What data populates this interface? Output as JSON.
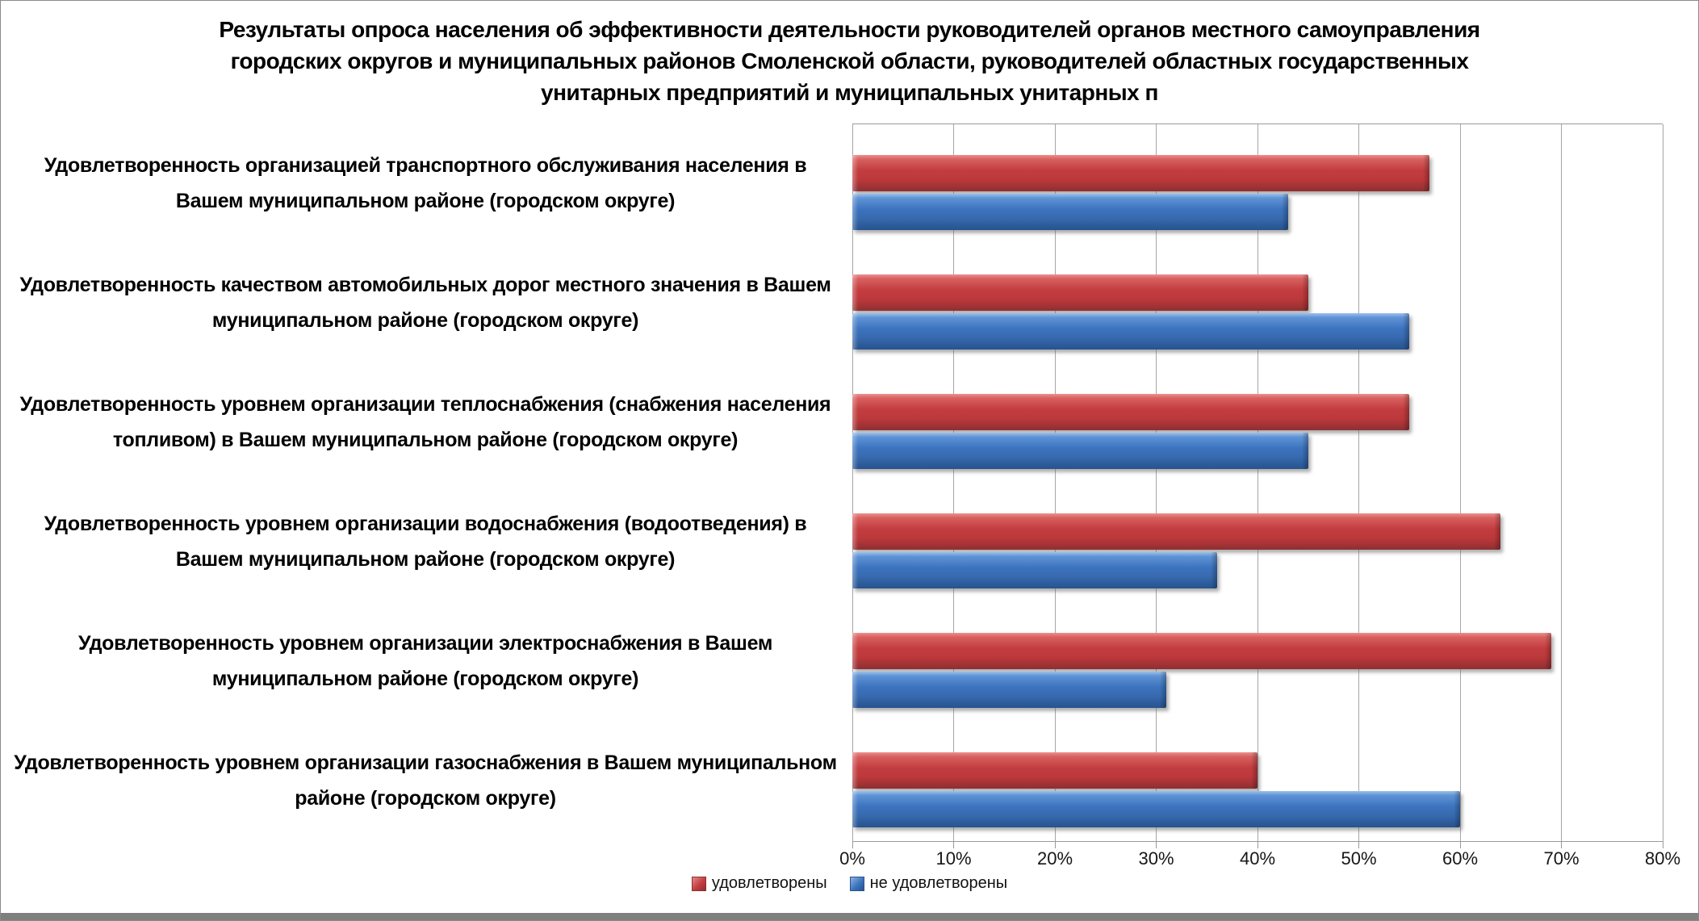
{
  "title": {
    "lines": [
      "Результаты опроса населения об эффективности деятельности руководителей органов местного самоуправления",
      "городских округов и муниципальных районов Смоленской области, руководителей областных государственных",
      "унитарных предприятий и муниципальных унитарных п"
    ]
  },
  "chart_data": {
    "type": "bar",
    "orientation": "horizontal",
    "title": "Результаты опроса населения об эффективности деятельности руководителей органов местного самоуправления городских округов и муниципальных районов Смоленской области, руководителей областных государственных унитарных предприятий и муниципальных унитарных п",
    "categories": [
      "Удовлетворенность организацией транспортного обслуживания населения в Вашем муниципальном районе (городском округе)",
      "Удовлетворенность качеством автомобильных дорог местного значения в Вашем муниципальном районе (городском округе)",
      "Удовлетворенность уровнем организации теплоснабжения (снабжения населения топливом) в Вашем муниципальном районе (городском округе)",
      "Удовлетворенность уровнем организации водоснабжения (водоотведения) в Вашем муниципальном районе (городском округе)",
      "Удовлетворенность уровнем организации электроснабжения в Вашем муниципальном районе (городском округе)",
      "Удовлетворенность уровнем организации газоснабжения в Вашем муниципальном районе (городском округе)"
    ],
    "series": [
      {
        "name": "удовлетворены",
        "color": "#C03B3E",
        "values": [
          57,
          45,
          55,
          64,
          69,
          40
        ]
      },
      {
        "name": "не удовлетворены",
        "color": "#3D74BF",
        "values": [
          43,
          55,
          45,
          36,
          31,
          60
        ]
      }
    ],
    "x_axis": {
      "min": 0,
      "max": 80,
      "unit": "%",
      "ticks": [
        "0%",
        "10%",
        "20%",
        "30%",
        "40%",
        "50%",
        "60%",
        "70%",
        "80%"
      ]
    },
    "legend_position": "bottom",
    "grid": "vertical"
  }
}
